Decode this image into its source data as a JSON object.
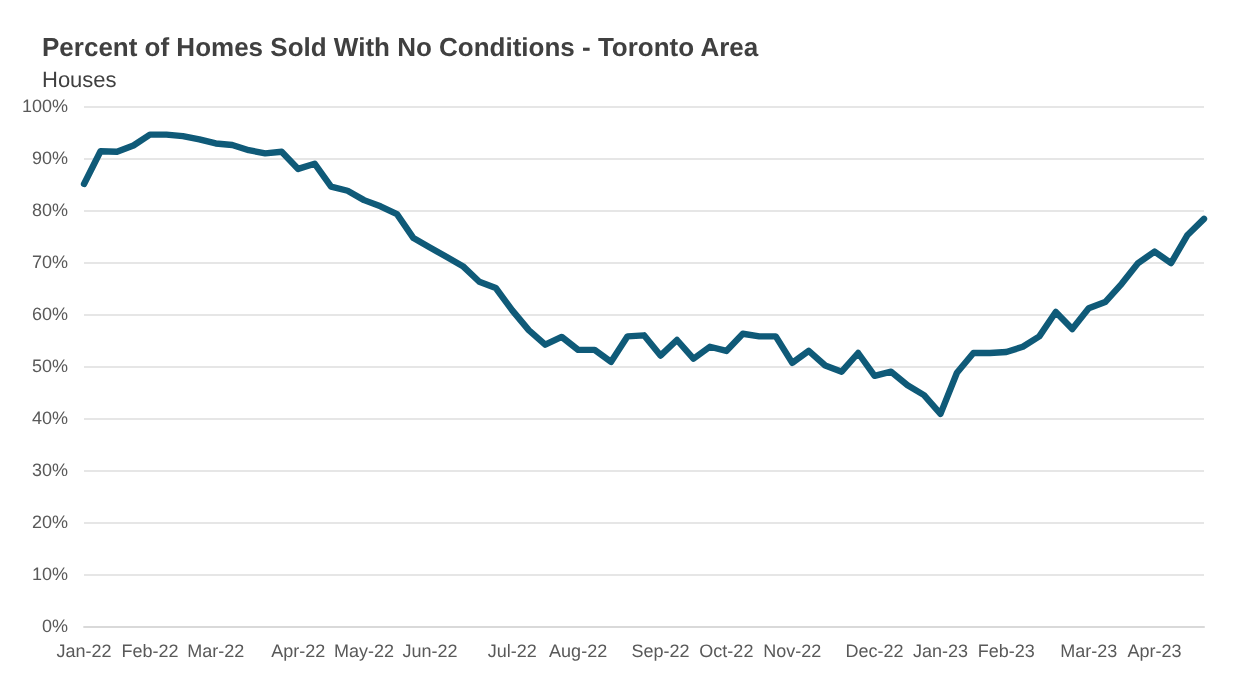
{
  "chart_data": {
    "type": "line",
    "title": "Percent of Homes Sold With No Conditions - Toronto Area",
    "subtitle": "Houses",
    "categories": [
      "Jan-22",
      null,
      null,
      null,
      "Feb-22",
      null,
      null,
      null,
      "Mar-22",
      null,
      null,
      null,
      null,
      "Apr-22",
      null,
      null,
      null,
      "May-22",
      null,
      null,
      null,
      "Jun-22",
      null,
      null,
      null,
      null,
      "Jul-22",
      null,
      null,
      null,
      "Aug-22",
      null,
      null,
      null,
      null,
      "Sep-22",
      null,
      null,
      null,
      "Oct-22",
      null,
      null,
      null,
      "Nov-22",
      null,
      null,
      null,
      null,
      "Dec-22",
      null,
      null,
      null,
      "Jan-23",
      null,
      null,
      null,
      "Feb-23",
      null,
      null,
      null,
      null,
      "Mar-23",
      null,
      null,
      null,
      "Apr-23",
      null,
      null,
      null
    ],
    "series": [
      {
        "color": "#0f5a78",
        "values": [
          85,
          91.3,
          91.2,
          92.4,
          94.5,
          94.5,
          94.2,
          93.6,
          92.8,
          92.5,
          91.5,
          90.9,
          91.2,
          87.9,
          88.9,
          84.5,
          83.7,
          81.9,
          80.7,
          79.2,
          74.6,
          72.8,
          71,
          69.2,
          66.2,
          65,
          60.7,
          56.9,
          54.1,
          55.6,
          53.1,
          53.1,
          50.8,
          55.7,
          55.9,
          52,
          55,
          51.4,
          53.7,
          52.9,
          56.2,
          55.7,
          55.7,
          50.6,
          52.9,
          50.1,
          48.9,
          52.5,
          48.1,
          48.9,
          46.3,
          44.4,
          40.8,
          48.7,
          52.5,
          52.5,
          52.7,
          53.7,
          55.7,
          60.4,
          57.1,
          61.1,
          62.3,
          65.8,
          69.8,
          72,
          69.8,
          75.2,
          78.3
        ]
      }
    ],
    "ylim": [
      0,
      100
    ],
    "yticks": [
      {
        "value": 0,
        "label": "0%"
      },
      {
        "value": 10,
        "label": "10%"
      },
      {
        "value": 20,
        "label": "20%"
      },
      {
        "value": 30,
        "label": "30%"
      },
      {
        "value": 40,
        "label": "40%"
      },
      {
        "value": 50,
        "label": "50%"
      },
      {
        "value": 60,
        "label": "60%"
      },
      {
        "value": 70,
        "label": "70%"
      },
      {
        "value": 80,
        "label": "80%"
      },
      {
        "value": 90,
        "label": "90%"
      },
      {
        "value": 100,
        "label": "100%"
      }
    ],
    "grid": "y",
    "marker": "none",
    "line_style": "solid"
  }
}
